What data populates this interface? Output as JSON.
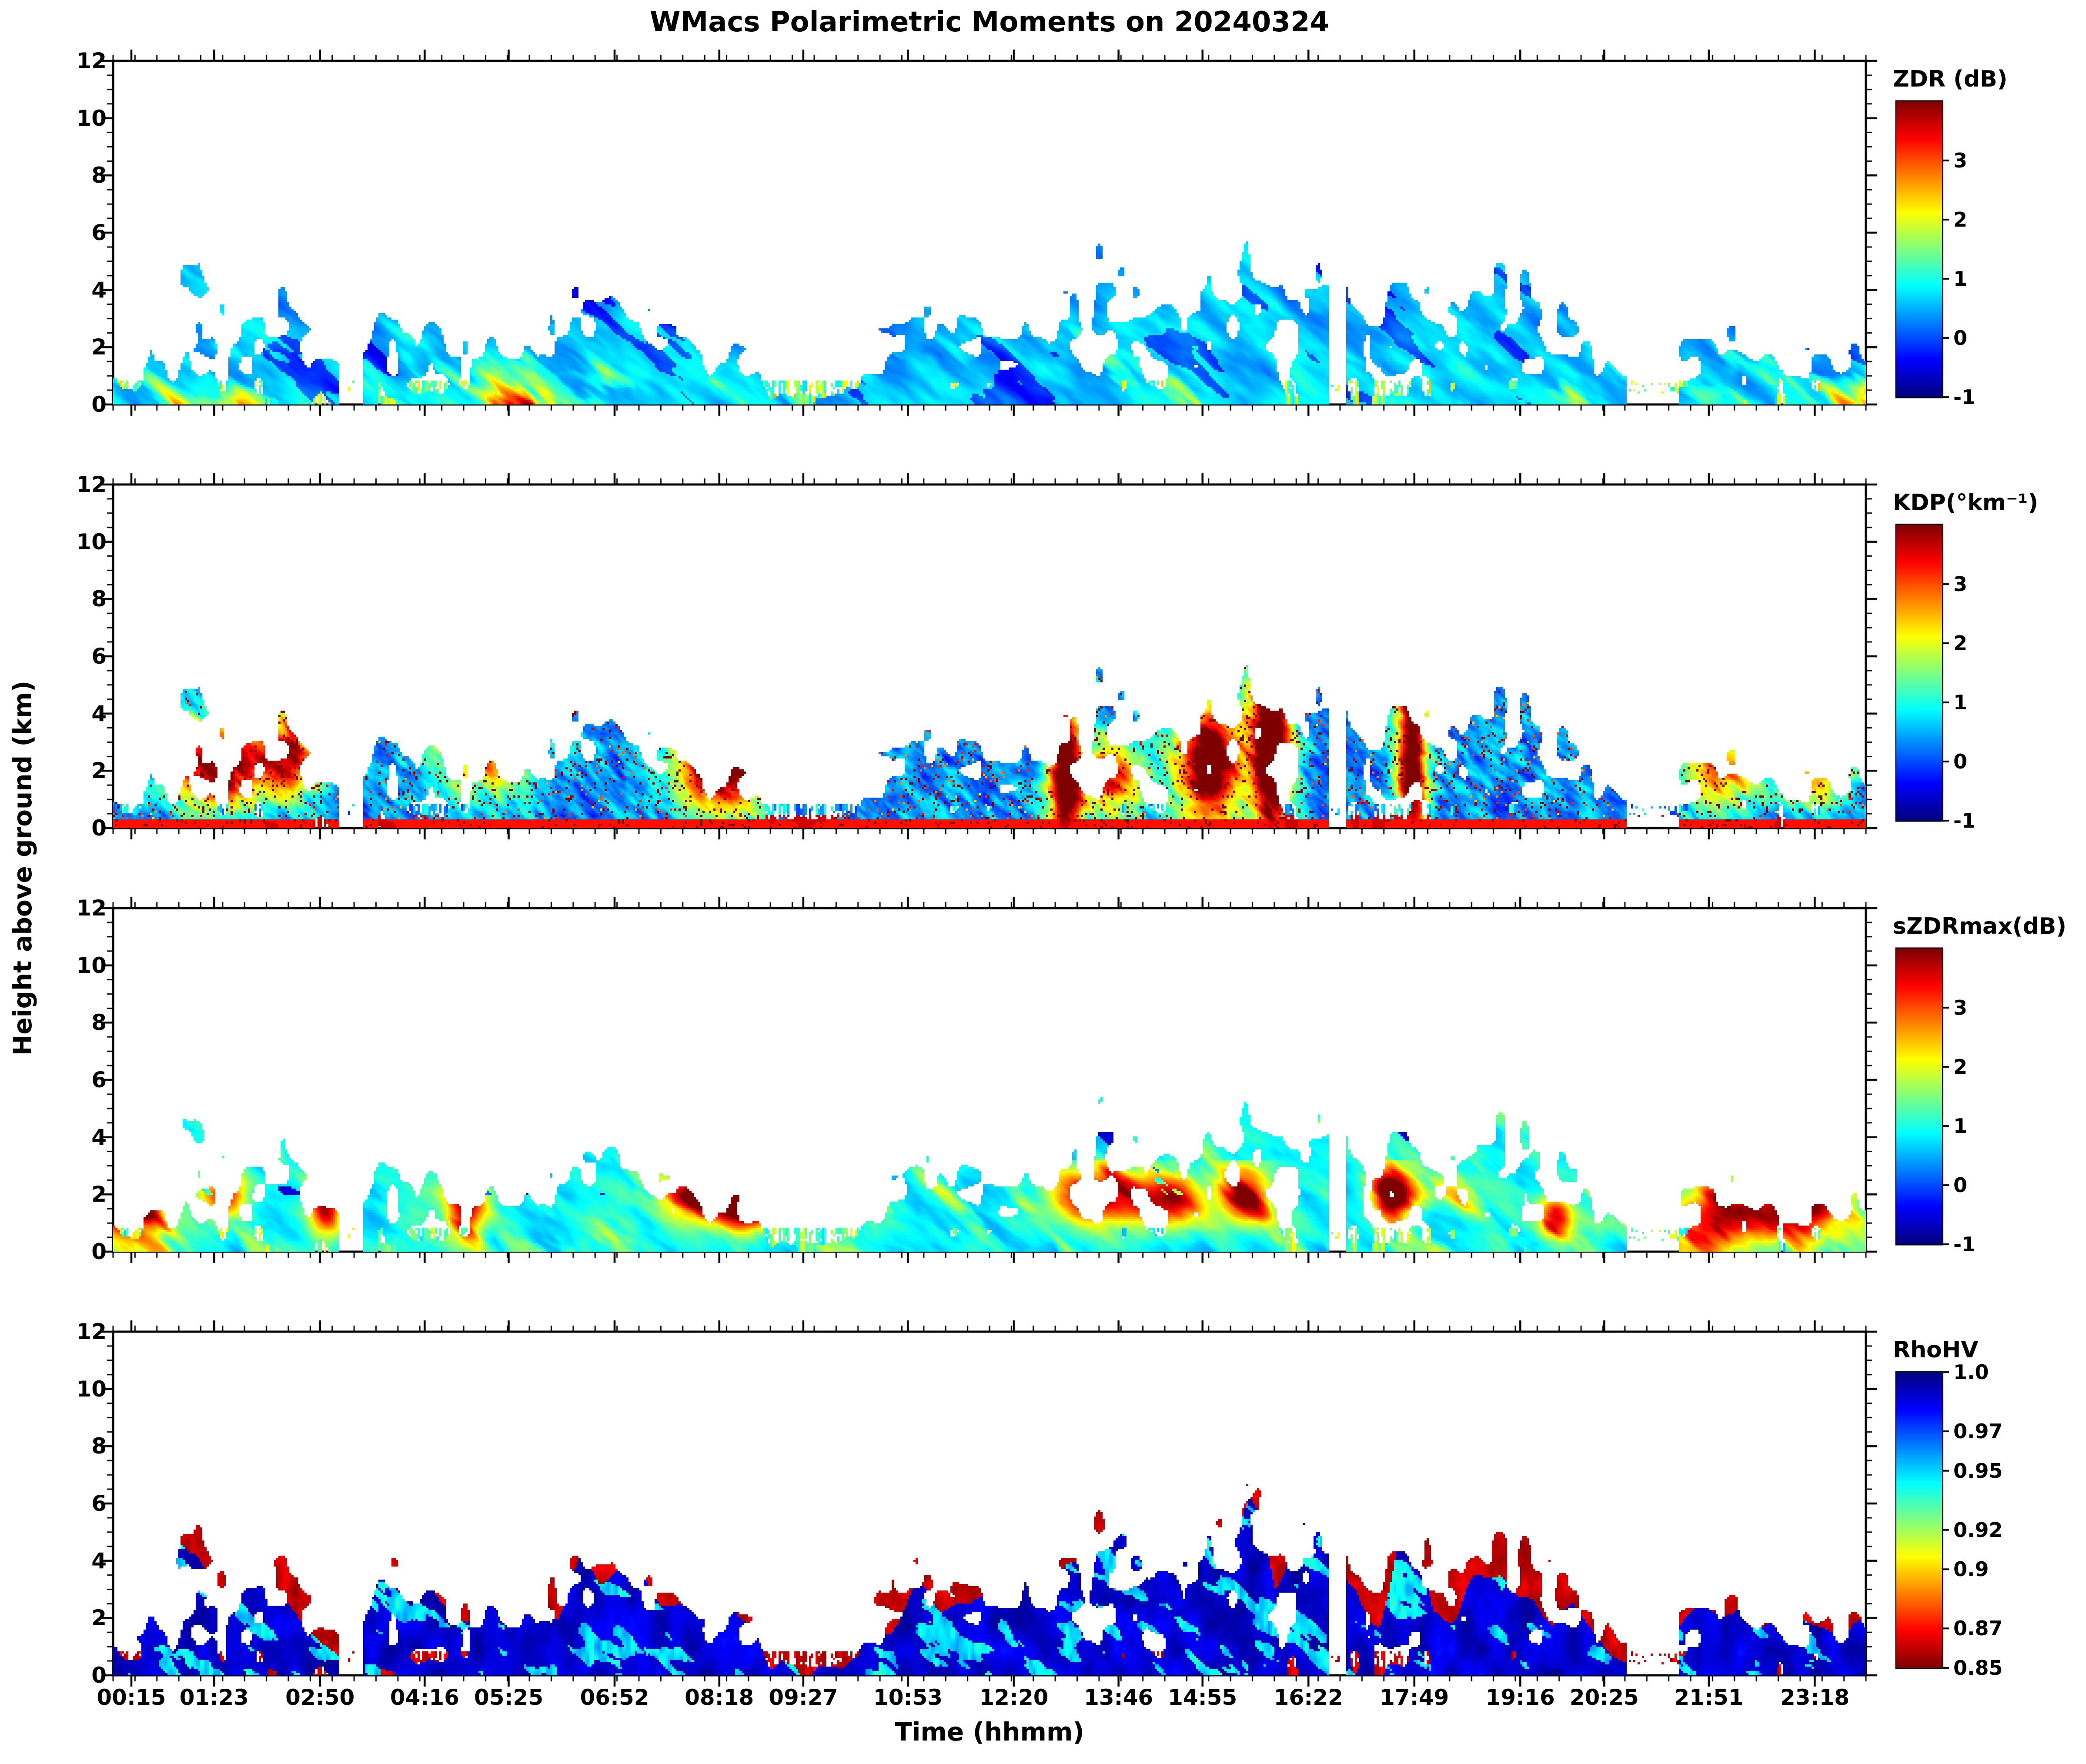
{
  "chart_data": {
    "type": "heatmap",
    "title": "WMacs Polarimetric Moments on 20240324",
    "xlabel": "Time (hhmm)",
    "ylabel": "Height above ground (km)",
    "x_axis": {
      "unit": "hhmm",
      "range_minutes": [
        0,
        1440
      ],
      "tick_labels": [
        "00:15",
        "01:23",
        "02:50",
        "04:16",
        "05:25",
        "06:52",
        "08:18",
        "09:27",
        "10:53",
        "12:20",
        "13:46",
        "14:55",
        "16:22",
        "17:49",
        "19:16",
        "20:25",
        "21:51",
        "23:18"
      ],
      "tick_minutes": [
        15,
        83,
        170,
        256,
        325,
        412,
        498,
        567,
        653,
        740,
        826,
        895,
        982,
        1069,
        1156,
        1225,
        1311,
        1398
      ],
      "minor_tick_step_minutes": 18
    },
    "y_axis": {
      "range_km": [
        0,
        12
      ],
      "tick_values": [
        0,
        2,
        4,
        6,
        8,
        10,
        12
      ],
      "minor_tick_step_km": 0.5
    },
    "colormap": {
      "name": "jet",
      "stops": [
        "#00007f",
        "#0000ff",
        "#00ffff",
        "#80ff80",
        "#ffff00",
        "#ff8000",
        "#ff0000",
        "#7f0000"
      ]
    },
    "panels": [
      {
        "id": "zdr",
        "label": "ZDR (dB)",
        "vmin": -1,
        "vmax": 4,
        "reverse_colormap": false,
        "colorbar_ticks": [
          {
            "value": 3,
            "label": "3"
          },
          {
            "value": 2,
            "label": "2"
          },
          {
            "value": 1,
            "label": "1"
          },
          {
            "value": 0,
            "label": "0"
          },
          {
            "value": -1,
            "label": "-1"
          }
        ]
      },
      {
        "id": "kdp",
        "label": "KDP(°km⁻¹)",
        "vmin": -1,
        "vmax": 4,
        "reverse_colormap": false,
        "colorbar_ticks": [
          {
            "value": 3,
            "label": "3"
          },
          {
            "value": 2,
            "label": "2"
          },
          {
            "value": 1,
            "label": "1"
          },
          {
            "value": 0,
            "label": "0"
          },
          {
            "value": -1,
            "label": "-1"
          }
        ]
      },
      {
        "id": "szdrmax",
        "label": "sZDRmax(dB)",
        "vmin": -1,
        "vmax": 4,
        "reverse_colormap": false,
        "colorbar_ticks": [
          {
            "value": 3,
            "label": "3"
          },
          {
            "value": 2,
            "label": "2"
          },
          {
            "value": 1,
            "label": "1"
          },
          {
            "value": 0,
            "label": "0"
          },
          {
            "value": -1,
            "label": "-1"
          }
        ]
      },
      {
        "id": "rhohv",
        "label": "RhoHV",
        "vmin": 0.85,
        "vmax": 1.0,
        "reverse_colormap": true,
        "colorbar_ticks": [
          {
            "value": 1.0,
            "label": "1.0"
          },
          {
            "value": 0.97,
            "label": "0.97"
          },
          {
            "value": 0.95,
            "label": "0.95"
          },
          {
            "value": 0.92,
            "label": "0.92"
          },
          {
            "value": 0.9,
            "label": "0.9"
          },
          {
            "value": 0.87,
            "label": "0.87"
          },
          {
            "value": 0.85,
            "label": "0.85"
          }
        ]
      }
    ],
    "echo_envelope": {
      "times": [
        0,
        25,
        55,
        75,
        95,
        115,
        140,
        165,
        185,
        200,
        215,
        240,
        265,
        290,
        315,
        340,
        365,
        395,
        420,
        450,
        480,
        510,
        540,
        565,
        585,
        600,
        615,
        640,
        665,
        695,
        725,
        755,
        785,
        815,
        845,
        875,
        905,
        935,
        955,
        975,
        995,
        1015,
        1040,
        1065,
        1085,
        1110,
        1140,
        1170,
        1200,
        1230,
        1255,
        1280,
        1305,
        1330,
        1360,
        1395,
        1440
      ],
      "top_km": [
        3.0,
        3.3,
        5.9,
        5.2,
        4.3,
        4.7,
        4.9,
        3.0,
        1.8,
        2.2,
        4.4,
        4.4,
        4.1,
        3.6,
        4.4,
        4.3,
        4.1,
        4.4,
        4.4,
        4.0,
        3.4,
        2.6,
        1.6,
        1.0,
        0.8,
        0.6,
        2.4,
        4.3,
        4.5,
        4.5,
        4.4,
        4.6,
        5.2,
        5.6,
        6.0,
        5.9,
        6.3,
        6.6,
        5.6,
        6.0,
        5.8,
        5.5,
        4.3,
        6.1,
        4.0,
        4.4,
        5.7,
        5.3,
        4.7,
        2.2,
        1.2,
        3.1,
        3.3,
        2.9,
        3.0,
        3.3,
        2.9
      ],
      "wet_fraction": [
        0.7,
        0.6,
        0.75,
        0.65,
        0.5,
        0.8,
        0.6,
        0.4,
        0.3,
        0.4,
        0.85,
        0.8,
        0.6,
        0.5,
        0.75,
        0.5,
        0.45,
        0.85,
        0.8,
        0.75,
        0.7,
        0.8,
        0.7,
        0.5,
        0.4,
        0.3,
        0.4,
        0.35,
        0.5,
        0.6,
        0.55,
        0.65,
        0.7,
        0.75,
        0.85,
        0.8,
        0.65,
        0.9,
        0.55,
        0.85,
        0.7,
        0.5,
        0.5,
        0.85,
        0.5,
        0.6,
        0.55,
        0.45,
        0.4,
        0.35,
        0.2,
        0.55,
        0.7,
        0.6,
        0.55,
        0.5,
        0.5
      ],
      "data_gaps_min": [
        [
          186,
          206
        ],
        [
          999,
          1013
        ],
        [
          1244,
          1286
        ]
      ]
    },
    "kdp_hotspots": [
      [
        85,
        2.2,
        28,
        1.1,
        4.0
      ],
      [
        145,
        2.6,
        20,
        1.0,
        3.2
      ],
      [
        310,
        2.9,
        30,
        1.2,
        2.8
      ],
      [
        500,
        2.2,
        26,
        1.2,
        4.5
      ],
      [
        782,
        2.0,
        10,
        2.4,
        4.5
      ],
      [
        820,
        1.8,
        18,
        1.0,
        3.0
      ],
      [
        900,
        2.3,
        20,
        1.6,
        4.5
      ],
      [
        952,
        3.2,
        12,
        3.2,
        5.0
      ],
      [
        1067,
        2.6,
        9,
        2.8,
        4.5
      ],
      [
        1320,
        2.0,
        25,
        1.0,
        2.5
      ],
      [
        1400,
        2.2,
        20,
        1.0,
        2.5
      ]
    ],
    "szdrmax_hotspots": [
      [
        10,
        1.5,
        20,
        0.8,
        3.5
      ],
      [
        90,
        2.0,
        15,
        0.7,
        2.5
      ],
      [
        175,
        1.8,
        10,
        0.8,
        3.0
      ],
      [
        290,
        1.5,
        12,
        0.8,
        3.0
      ],
      [
        490,
        2.0,
        25,
        0.7,
        3.5
      ],
      [
        520,
        1.5,
        15,
        0.6,
        3.0
      ],
      [
        810,
        2.0,
        30,
        0.7,
        3.0
      ],
      [
        870,
        1.8,
        20,
        0.6,
        2.5
      ],
      [
        930,
        2.0,
        15,
        0.7,
        3.0
      ],
      [
        1050,
        2.0,
        12,
        0.7,
        3.5
      ],
      [
        1185,
        1.2,
        10,
        0.6,
        2.5
      ],
      [
        1320,
        1.2,
        30,
        0.8,
        3.0
      ],
      [
        1390,
        1.8,
        25,
        0.9,
        3.5
      ]
    ]
  }
}
